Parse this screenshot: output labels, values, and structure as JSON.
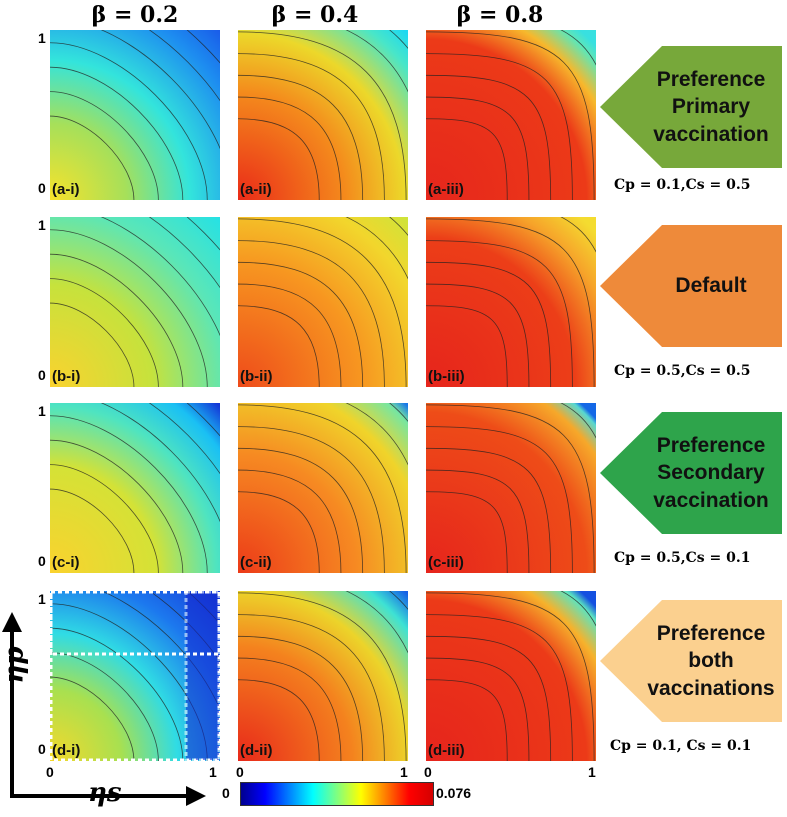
{
  "columns": [
    {
      "label": "β = 0.2",
      "beta": 0.2
    },
    {
      "label": "β = 0.4",
      "beta": 0.4
    },
    {
      "label": "β = 0.8",
      "beta": 0.8
    }
  ],
  "rows": [
    {
      "id": "a",
      "badge": "Preference\nPrimary\nvaccination",
      "badge_color": "#77a83a",
      "params": "Cp = 0.1,Cs = 0.5",
      "panels": [
        "(a-i)",
        "(a-ii)",
        "(a-iii)"
      ]
    },
    {
      "id": "b",
      "badge": "Default",
      "badge_color": "#ee8a3a",
      "params": "Cp = 0.5,Cs = 0.5",
      "panels": [
        "(b-i)",
        "(b-ii)",
        "(b-iii)"
      ]
    },
    {
      "id": "c",
      "badge": "Preference\nSecondary\nvaccination",
      "badge_color": "#2ea44b",
      "params": "Cp = 0.5,Cs = 0.1",
      "panels": [
        "(c-i)",
        "(c-ii)",
        "(c-iii)"
      ]
    },
    {
      "id": "d",
      "badge": "Preference\nboth\nvaccinations",
      "badge_color": "#fbd08f",
      "params": "Cp = 0.1, Cs = 0.1",
      "panels": [
        "(d-i)",
        "(d-ii)",
        "(d-iii)"
      ]
    }
  ],
  "ticks": {
    "zero": "0",
    "one": "1"
  },
  "axes": {
    "xlabel": "ηs",
    "ylabel": "ηp"
  },
  "colorbar": {
    "min": "0",
    "max": "0.076"
  },
  "colors": {
    "low": "#1830d8",
    "high": "#e8201c"
  },
  "chart_data": {
    "type": "heatmap",
    "title": "",
    "xlabel": "ηs",
    "ylabel": "ηp",
    "xlim": [
      0,
      1
    ],
    "ylim": [
      0,
      1
    ],
    "color_range": [
      0,
      0.076
    ],
    "colormap": "jet",
    "grid": false,
    "panels": [
      {
        "label": "(a-i)",
        "beta": 0.2,
        "Cp": 0.1,
        "Cs": 0.5,
        "peak": 0.038
      },
      {
        "label": "(a-ii)",
        "beta": 0.4,
        "Cp": 0.1,
        "Cs": 0.5,
        "peak": 0.068
      },
      {
        "label": "(a-iii)",
        "beta": 0.8,
        "Cp": 0.1,
        "Cs": 0.5,
        "peak": 0.076
      },
      {
        "label": "(b-i)",
        "beta": 0.2,
        "Cp": 0.5,
        "Cs": 0.5,
        "peak": 0.045
      },
      {
        "label": "(b-ii)",
        "beta": 0.4,
        "Cp": 0.5,
        "Cs": 0.5,
        "peak": 0.066
      },
      {
        "label": "(b-iii)",
        "beta": 0.8,
        "Cp": 0.5,
        "Cs": 0.5,
        "peak": 0.076
      },
      {
        "label": "(c-i)",
        "beta": 0.2,
        "Cp": 0.5,
        "Cs": 0.1,
        "peak": 0.044
      },
      {
        "label": "(c-ii)",
        "beta": 0.4,
        "Cp": 0.5,
        "Cs": 0.1,
        "peak": 0.068
      },
      {
        "label": "(c-iii)",
        "beta": 0.8,
        "Cp": 0.5,
        "Cs": 0.1,
        "peak": 0.076
      },
      {
        "label": "(d-i)",
        "beta": 0.2,
        "Cp": 0.1,
        "Cs": 0.1,
        "peak": 0.04
      },
      {
        "label": "(d-ii)",
        "beta": 0.4,
        "Cp": 0.1,
        "Cs": 0.1,
        "peak": 0.07
      },
      {
        "label": "(d-iii)",
        "beta": 0.8,
        "Cp": 0.1,
        "Cs": 0.1,
        "peak": 0.076
      }
    ]
  }
}
